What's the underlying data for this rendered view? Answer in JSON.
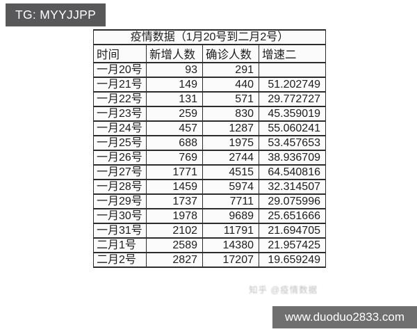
{
  "topbar": {
    "label": "TG: MYYJJPP"
  },
  "footer": {
    "label": "www.duoduo2833.com"
  },
  "watermark": {
    "text": "知乎 @疫情数据"
  },
  "colors": {
    "topbar_bg": "#58585a",
    "footer_bg": "#6f6f6f",
    "table_border": "#2b2b2b",
    "cell_bg": "#fbfbfb",
    "page_bg": "#ffffff",
    "text": "#1d1d1d"
  },
  "chart_data": {
    "type": "table",
    "title": "疫情数据（1月20号到二月2号）",
    "columns": [
      "时间",
      "新增人数",
      "确诊人数",
      "增速二"
    ],
    "rows": [
      [
        "一月20号",
        "93",
        "291",
        ""
      ],
      [
        "一月21号",
        "149",
        "440",
        "51.202749"
      ],
      [
        "一月22号",
        "131",
        "571",
        "29.772727"
      ],
      [
        "一月23号",
        "259",
        "830",
        "45.359019"
      ],
      [
        "一月24号",
        "457",
        "1287",
        "55.060241"
      ],
      [
        "一月25号",
        "688",
        "1975",
        "53.457653"
      ],
      [
        "一月26号",
        "769",
        "2744",
        "38.936709"
      ],
      [
        "一月27号",
        "1771",
        "4515",
        "64.540816"
      ],
      [
        "一月28号",
        "1459",
        "5974",
        "32.314507"
      ],
      [
        "一月29号",
        "1737",
        "7711",
        "29.075996"
      ],
      [
        "一月30号",
        "1978",
        "9689",
        "25.651666"
      ],
      [
        "一月31号",
        "2102",
        "11791",
        "21.694705"
      ],
      [
        "二月1号",
        "2589",
        "14380",
        "21.957425"
      ],
      [
        "二月2号",
        "2827",
        "17207",
        "19.659249"
      ]
    ]
  }
}
